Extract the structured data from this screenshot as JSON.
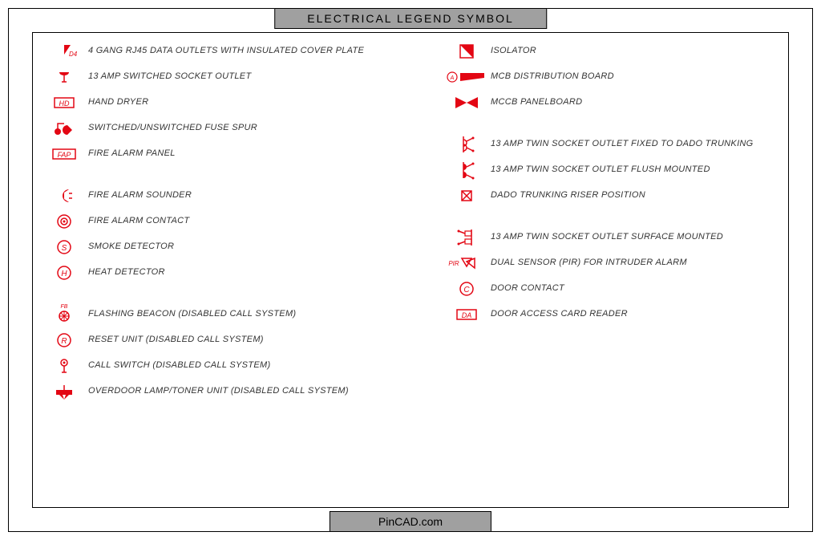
{
  "title": "ELECTRICAL LEGEND  SYMBOL",
  "footer": "PinCAD.com",
  "colors": {
    "symbol": "#e30613",
    "text": "#333333",
    "border": "#000000",
    "title_bg": "#a0a0a0"
  },
  "typography": {
    "title_fontsize": 14,
    "label_fontsize": 11,
    "label_style": "italic"
  },
  "left": [
    [
      {
        "id": "d4",
        "label": "4 GANG RJ45 DATA OUTLETS WITH INSULATED COVER PLATE"
      },
      {
        "id": "sw-sock",
        "label": "13 AMP SWITCHED SOCKET OUTLET"
      },
      {
        "id": "hd",
        "label": "HAND DRYER"
      },
      {
        "id": "fuse",
        "label": "SWITCHED/UNSWITCHED FUSE SPUR"
      },
      {
        "id": "fap",
        "label": "FIRE ALARM PANEL"
      }
    ],
    [
      {
        "id": "sounder",
        "label": "FIRE ALARM SOUNDER"
      },
      {
        "id": "contact",
        "label": "FIRE ALARM CONTACT"
      },
      {
        "id": "smoke",
        "label": "SMOKE DETECTOR"
      },
      {
        "id": "heat",
        "label": "HEAT DETECTOR"
      }
    ],
    [
      {
        "id": "fb",
        "label": "FLASHING BEACON (DISABLED CALL SYSTEM)"
      },
      {
        "id": "reset",
        "label": "RESET UNIT (DISABLED CALL SYSTEM)"
      },
      {
        "id": "callsw",
        "label": "CALL SWITCH (DISABLED CALL SYSTEM)"
      },
      {
        "id": "overdoor",
        "label": "OVERDOOR LAMP/TONER UNIT (DISABLED CALL SYSTEM)"
      }
    ]
  ],
  "right": [
    [
      {
        "id": "iso",
        "label": "ISOLATOR"
      },
      {
        "id": "mcb",
        "label": "MCB DISTRIBUTION BOARD"
      },
      {
        "id": "mccb",
        "label": "MCCB PANELBOARD"
      }
    ],
    [
      {
        "id": "twin-dado",
        "label": "13 AMP TWIN SOCKET OUTLET FIXED TO DADO TRUNKING"
      },
      {
        "id": "twin-flush",
        "label": "13 AMP TWIN SOCKET OUTLET FLUSH MOUNTED"
      },
      {
        "id": "dado-riser",
        "label": "DADO TRUNKING RISER POSITION"
      }
    ],
    [
      {
        "id": "twin-surf",
        "label": "13 AMP TWIN SOCKET OUTLET SURFACE MOUNTED"
      },
      {
        "id": "pir",
        "label": "DUAL SENSOR (PIR) FOR INTRUDER ALARM"
      },
      {
        "id": "doorc",
        "label": "DOOR CONTACT"
      },
      {
        "id": "da",
        "label": "DOOR ACCESS CARD READER"
      }
    ]
  ]
}
